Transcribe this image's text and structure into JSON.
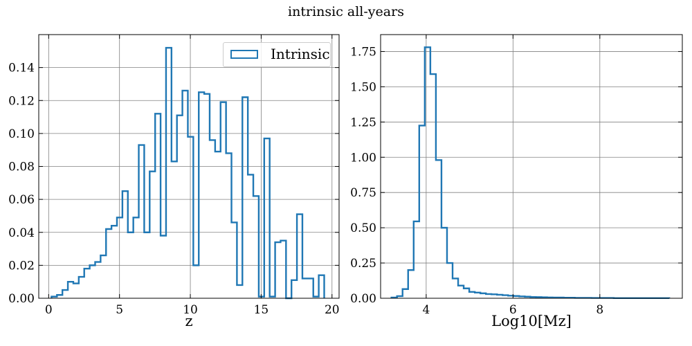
{
  "figure": {
    "title": "intrinsic all-years",
    "line_color": "#1f77b4",
    "grid_color": "#808080"
  },
  "chart_data": [
    {
      "type": "histogram",
      "xlabel": "z",
      "ylabel": "",
      "grid": true,
      "legend": {
        "entries": [
          "Intrinsic"
        ],
        "placement": "top-right"
      },
      "xlim": [
        -0.7,
        20.5
      ],
      "ylim": [
        0,
        0.16
      ],
      "xticks": [
        0,
        5,
        10,
        15,
        20
      ],
      "yticks": [
        0.0,
        0.02,
        0.04,
        0.06,
        0.08,
        0.1,
        0.12,
        0.14
      ],
      "tick_decimals": 2,
      "series": [
        {
          "name": "Intrinsic",
          "bin_start": 0.2,
          "bin_width": 0.385,
          "values": [
            0.001,
            0.002,
            0.005,
            0.01,
            0.009,
            0.013,
            0.018,
            0.02,
            0.022,
            0.026,
            0.042,
            0.044,
            0.049,
            0.065,
            0.04,
            0.049,
            0.093,
            0.04,
            0.077,
            0.112,
            0.038,
            0.152,
            0.083,
            0.111,
            0.126,
            0.098,
            0.02,
            0.125,
            0.124,
            0.096,
            0.089,
            0.119,
            0.088,
            0.046,
            0.008,
            0.122,
            0.075,
            0.062,
            0.001,
            0.097,
            0.001,
            0.034,
            0.035,
            0.0,
            0.011,
            0.051,
            0.012,
            0.012,
            0.001,
            0.014
          ]
        }
      ]
    },
    {
      "type": "histogram",
      "xlabel": "Log10[Mz]",
      "ylabel": "",
      "grid": true,
      "xlim": [
        2.95,
        9.9
      ],
      "ylim": [
        0,
        1.87
      ],
      "xticks": [
        4,
        6,
        8
      ],
      "yticks": [
        0.0,
        0.25,
        0.5,
        0.75,
        1.0,
        1.25,
        1.5,
        1.75
      ],
      "tick_decimals": 2,
      "series": [
        {
          "name": "",
          "bin_start": 3.2,
          "bin_width": 0.128,
          "values": [
            0.005,
            0.015,
            0.065,
            0.2,
            0.545,
            1.225,
            1.78,
            1.59,
            0.98,
            0.5,
            0.25,
            0.14,
            0.09,
            0.07,
            0.045,
            0.04,
            0.035,
            0.03,
            0.028,
            0.025,
            0.022,
            0.018,
            0.016,
            0.013,
            0.011,
            0.009,
            0.008,
            0.007,
            0.006,
            0.005,
            0.005,
            0.004,
            0.004,
            0.003,
            0.003,
            0.003,
            0.002,
            0.002,
            0.002,
            0.002,
            0.001,
            0.001,
            0.001,
            0.001,
            0.001,
            0.001,
            0.001,
            0.001,
            0.001,
            0.001
          ]
        }
      ]
    }
  ]
}
